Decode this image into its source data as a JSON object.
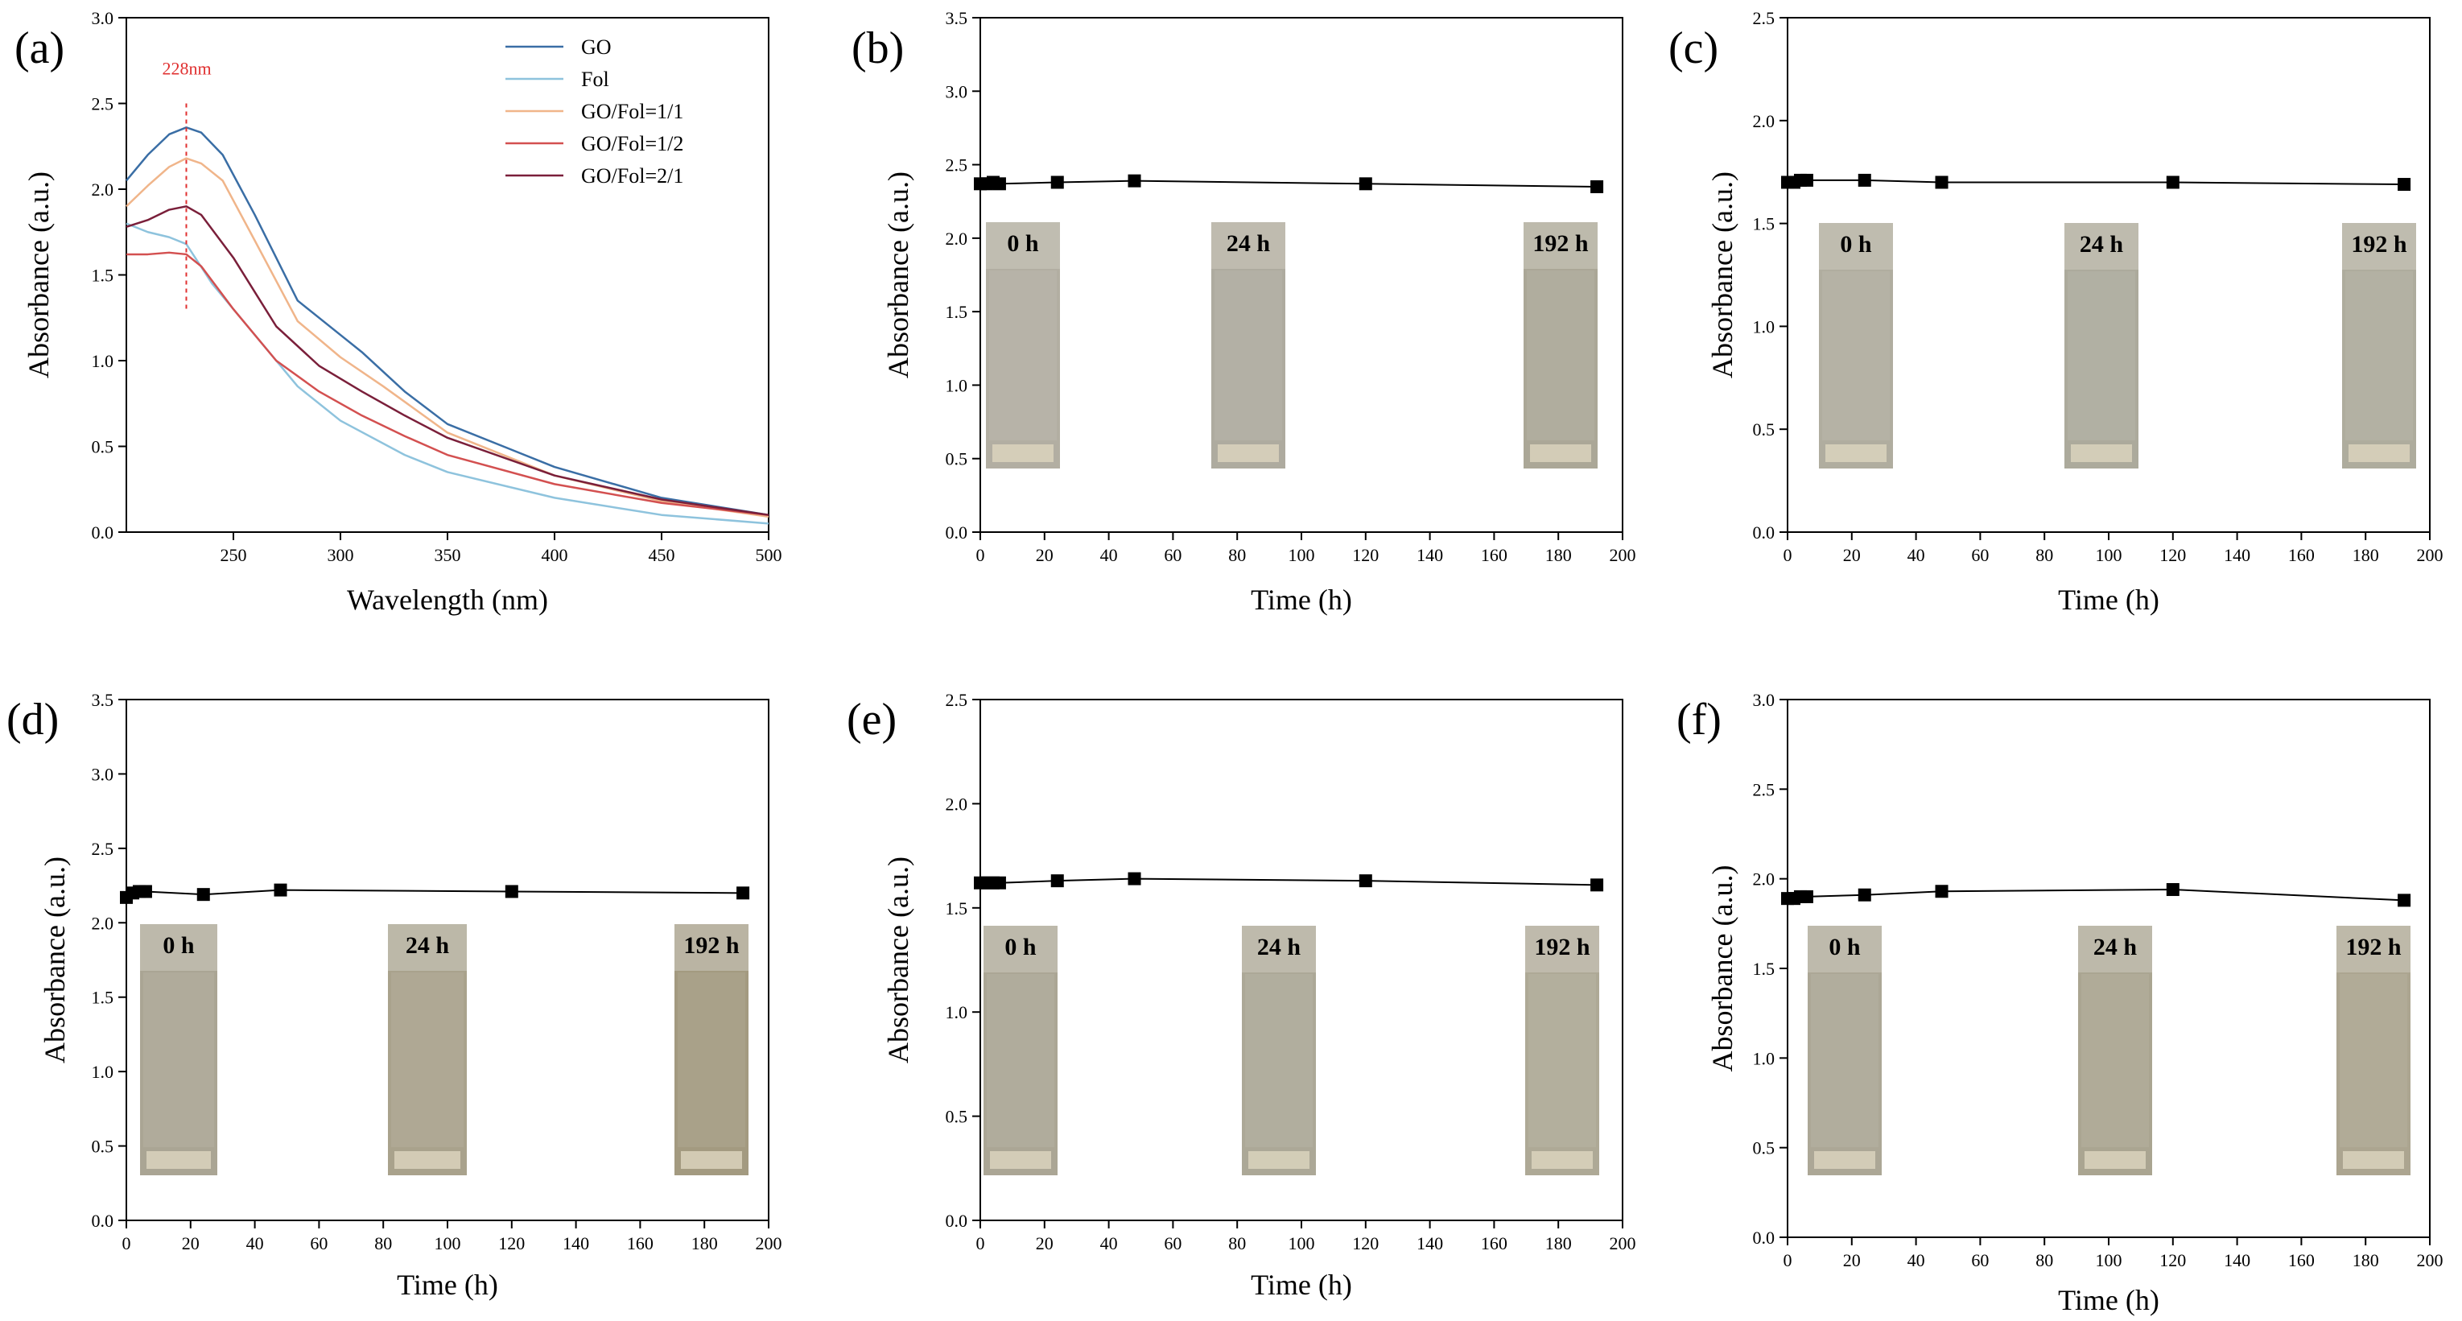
{
  "chart_data": [
    {
      "panel": "(a)",
      "type": "line",
      "xlabel": "Wavelength (nm)",
      "ylabel": "Absorbance (a.u.)",
      "xlim": [
        200,
        500
      ],
      "ylim": [
        0,
        3.0
      ],
      "xticks": [
        250,
        300,
        350,
        400,
        450,
        500
      ],
      "yticks": [
        0.0,
        0.5,
        1.0,
        1.5,
        2.0,
        2.5,
        3.0
      ],
      "legend_position": "top-right",
      "annotation": {
        "text": "228nm",
        "x": 228,
        "color": "#e03030"
      },
      "series": [
        {
          "name": "GO",
          "color": "#3a6ea5",
          "x": [
            200,
            210,
            220,
            228,
            235,
            245,
            260,
            280,
            300,
            310,
            330,
            350,
            400,
            450,
            500
          ],
          "y": [
            2.05,
            2.2,
            2.32,
            2.36,
            2.33,
            2.2,
            1.85,
            1.35,
            1.15,
            1.05,
            0.82,
            0.63,
            0.38,
            0.2,
            0.1
          ]
        },
        {
          "name": "Fol",
          "color": "#8ec3dd",
          "x": [
            200,
            210,
            220,
            228,
            240,
            260,
            280,
            300,
            330,
            350,
            400,
            450,
            500
          ],
          "y": [
            1.8,
            1.75,
            1.72,
            1.68,
            1.45,
            1.15,
            0.85,
            0.65,
            0.45,
            0.35,
            0.2,
            0.1,
            0.05
          ]
        },
        {
          "name": "GO/Fol=1/1",
          "color": "#f0b58a",
          "x": [
            200,
            210,
            220,
            228,
            235,
            245,
            260,
            280,
            300,
            320,
            350,
            400,
            450,
            500
          ],
          "y": [
            1.9,
            2.02,
            2.13,
            2.18,
            2.15,
            2.05,
            1.7,
            1.23,
            1.02,
            0.85,
            0.58,
            0.33,
            0.18,
            0.09
          ]
        },
        {
          "name": "GO/Fol=1/2",
          "color": "#d35050",
          "x": [
            200,
            210,
            220,
            228,
            235,
            250,
            270,
            290,
            310,
            330,
            350,
            400,
            450,
            500
          ],
          "y": [
            1.62,
            1.62,
            1.63,
            1.62,
            1.55,
            1.3,
            1.0,
            0.82,
            0.68,
            0.56,
            0.45,
            0.28,
            0.17,
            0.1
          ]
        },
        {
          "name": "GO/Fol=2/1",
          "color": "#7a1f3a",
          "x": [
            200,
            210,
            220,
            228,
            235,
            250,
            270,
            290,
            310,
            330,
            350,
            400,
            450,
            500
          ],
          "y": [
            1.78,
            1.82,
            1.88,
            1.9,
            1.85,
            1.6,
            1.2,
            0.97,
            0.82,
            0.68,
            0.55,
            0.33,
            0.19,
            0.1
          ]
        }
      ]
    },
    {
      "panel": "(b)",
      "type": "line",
      "xlabel": "Time (h)",
      "ylabel": "Absorbance (a.u.)",
      "xlim": [
        0,
        200
      ],
      "ylim": [
        0,
        3.5
      ],
      "xticks": [
        0,
        20,
        40,
        60,
        80,
        100,
        120,
        140,
        160,
        180,
        200
      ],
      "yticks": [
        0.0,
        0.5,
        1.0,
        1.5,
        2.0,
        2.5,
        3.0,
        3.5
      ],
      "x": [
        0,
        2,
        4,
        6,
        24,
        48,
        120,
        192
      ],
      "y": [
        2.37,
        2.37,
        2.38,
        2.37,
        2.38,
        2.39,
        2.37,
        2.35
      ],
      "photos": [
        {
          "label": "0 h",
          "tone": "#b2aea2"
        },
        {
          "label": "24 h",
          "tone": "#aeab9f"
        },
        {
          "label": "192 h",
          "tone": "#aba797"
        }
      ]
    },
    {
      "panel": "(c)",
      "type": "line",
      "xlabel": "Time (h)",
      "ylabel": "Absorbance (a.u.)",
      "xlim": [
        0,
        200
      ],
      "ylim": [
        0,
        2.5
      ],
      "xticks": [
        0,
        20,
        40,
        60,
        80,
        100,
        120,
        140,
        160,
        180,
        200
      ],
      "yticks": [
        0.0,
        0.5,
        1.0,
        1.5,
        2.0,
        2.5
      ],
      "x": [
        0,
        2,
        4,
        6,
        24,
        48,
        120,
        192
      ],
      "y": [
        1.7,
        1.7,
        1.71,
        1.71,
        1.71,
        1.7,
        1.7,
        1.69
      ],
      "photos": [
        {
          "label": "0 h",
          "tone": "#b0ad9f"
        },
        {
          "label": "24 h",
          "tone": "#acaa9c"
        },
        {
          "label": "192 h",
          "tone": "#aeac9d"
        }
      ]
    },
    {
      "panel": "(d)",
      "type": "line",
      "xlabel": "Time (h)",
      "ylabel": "Absorbance (a.u.)",
      "xlim": [
        0,
        200
      ],
      "ylim": [
        0,
        3.5
      ],
      "xticks": [
        0,
        20,
        40,
        60,
        80,
        100,
        120,
        140,
        160,
        180,
        200
      ],
      "yticks": [
        0.0,
        0.5,
        1.0,
        1.5,
        2.0,
        2.5,
        3.0,
        3.5
      ],
      "x": [
        0,
        2,
        4,
        6,
        24,
        48,
        120,
        192
      ],
      "y": [
        2.17,
        2.2,
        2.21,
        2.21,
        2.19,
        2.22,
        2.21,
        2.2
      ],
      "photos": [
        {
          "label": "0 h",
          "tone": "#aaa594"
        },
        {
          "label": "24 h",
          "tone": "#a9a28c"
        },
        {
          "label": "192 h",
          "tone": "#a39a80"
        }
      ]
    },
    {
      "panel": "(e)",
      "type": "line",
      "xlabel": "Time (h)",
      "ylabel": "Absorbance (a.u.)",
      "xlim": [
        0,
        200
      ],
      "ylim": [
        0,
        2.5
      ],
      "xticks": [
        0,
        20,
        40,
        60,
        80,
        100,
        120,
        140,
        160,
        180,
        200
      ],
      "yticks": [
        0.0,
        0.5,
        1.0,
        1.5,
        2.0,
        2.5
      ],
      "x": [
        0,
        2,
        4,
        6,
        24,
        48,
        120,
        192
      ],
      "y": [
        1.62,
        1.62,
        1.62,
        1.62,
        1.63,
        1.64,
        1.63,
        1.61
      ],
      "photos": [
        {
          "label": "0 h",
          "tone": "#aba695"
        },
        {
          "label": "24 h",
          "tone": "#aca897"
        },
        {
          "label": "192 h",
          "tone": "#aea996"
        }
      ]
    },
    {
      "panel": "(f)",
      "type": "line",
      "xlabel": "Time (h)",
      "ylabel": "Absorbance (a.u.)",
      "xlim": [
        0,
        200
      ],
      "ylim": [
        0,
        3.0
      ],
      "xticks": [
        0,
        20,
        40,
        60,
        80,
        100,
        120,
        140,
        160,
        180,
        200
      ],
      "yticks": [
        0.0,
        0.5,
        1.0,
        1.5,
        2.0,
        2.5,
        3.0
      ],
      "x": [
        0,
        2,
        4,
        6,
        24,
        48,
        120,
        192
      ],
      "y": [
        1.89,
        1.89,
        1.9,
        1.9,
        1.91,
        1.93,
        1.94,
        1.88
      ],
      "photos": [
        {
          "label": "0 h",
          "tone": "#aca796"
        },
        {
          "label": "24 h",
          "tone": "#aaa591"
        },
        {
          "label": "192 h",
          "tone": "#aca590"
        }
      ]
    }
  ]
}
